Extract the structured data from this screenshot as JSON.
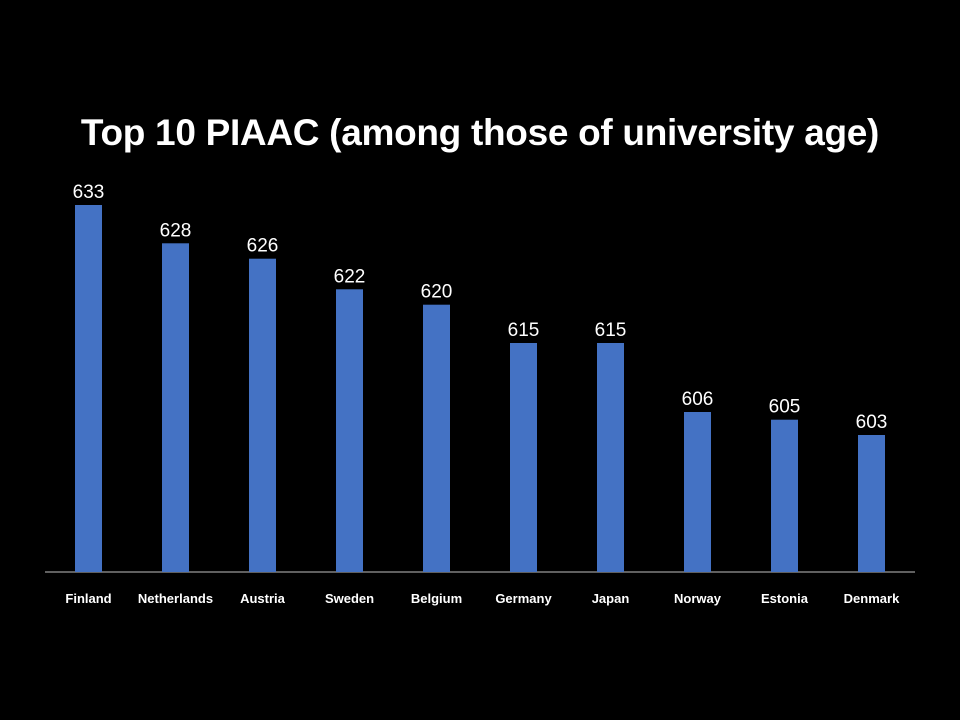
{
  "chart_data": {
    "type": "bar",
    "title": "Top 10 PIAAC (among those of university age)",
    "categories": [
      "Finland",
      "Netherlands",
      "Austria",
      "Sweden",
      "Belgium",
      "Germany",
      "Japan",
      "Norway",
      "Estonia",
      "Denmark"
    ],
    "values": [
      633,
      628,
      626,
      622,
      620,
      615,
      615,
      606,
      605,
      603
    ],
    "xlabel": "",
    "ylabel": "",
    "grid": false,
    "legend": "none",
    "colors": {
      "background": "#000000",
      "bar": "#4472C4",
      "axis": "#bfbfbf",
      "text": "#ffffff"
    }
  }
}
